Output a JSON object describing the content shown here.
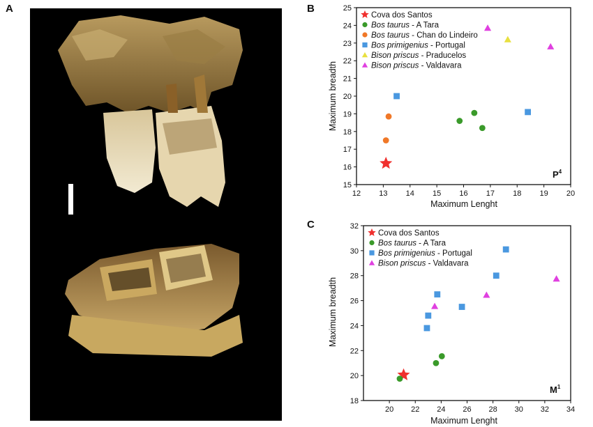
{
  "figure": {
    "panels": {
      "a": "A",
      "b": "B",
      "c": "C"
    },
    "photo_alt": "fossil-teeth-photograph"
  },
  "chart_data": [
    {
      "type": "scatter",
      "panel": "B",
      "tooth_label": "P",
      "tooth_superscript": "4",
      "xlabel": "Maximum Lenght",
      "ylabel": "Maximum breadth",
      "xlim": [
        12,
        20
      ],
      "ylim": [
        15,
        25
      ],
      "xticks": [
        12,
        13,
        14,
        15,
        16,
        17,
        18,
        19,
        20
      ],
      "yticks": [
        15,
        16,
        17,
        18,
        19,
        20,
        21,
        22,
        23,
        24,
        25
      ],
      "grid": false,
      "legend_position": "top-left",
      "series": [
        {
          "label_italic": "",
          "label_plain": "Cova dos Santos",
          "marker": "star",
          "color": "#f0302e",
          "points": [
            [
              13.1,
              16.2
            ]
          ]
        },
        {
          "label_italic": "Bos taurus",
          "label_plain": " - A Tara",
          "marker": "circle",
          "color": "#3a9a2a",
          "points": [
            [
              15.85,
              18.6
            ],
            [
              16.4,
              19.05
            ],
            [
              16.7,
              18.2
            ]
          ]
        },
        {
          "label_italic": "Bos taurus",
          "label_plain": " - Chan do Lindeiro",
          "marker": "circle",
          "color": "#f07828",
          "points": [
            [
              13.1,
              17.5
            ],
            [
              13.2,
              18.85
            ]
          ]
        },
        {
          "label_italic": "Bos primigenius",
          "label_plain": " - Portugal",
          "marker": "square",
          "color": "#4a98e0",
          "points": [
            [
              13.5,
              20.0
            ],
            [
              18.4,
              19.1
            ]
          ]
        },
        {
          "label_italic": "Bison priscus",
          "label_plain": " - Praducelos",
          "marker": "triangle",
          "color": "#e8e040",
          "points": [
            [
              17.65,
              23.2
            ]
          ]
        },
        {
          "label_italic": "Bison priscus",
          "label_plain": " - Valdavara",
          "marker": "triangle",
          "color": "#e040e0",
          "points": [
            [
              16.9,
              23.85
            ],
            [
              19.25,
              22.8
            ]
          ]
        }
      ]
    },
    {
      "type": "scatter",
      "panel": "C",
      "tooth_label": "M",
      "tooth_superscript": "1",
      "xlabel": "Maximum Lenght",
      "ylabel": "Maximum breadth",
      "xlim": [
        18,
        34
      ],
      "ylim": [
        18,
        32
      ],
      "xticks": [
        20,
        22,
        24,
        26,
        28,
        30,
        32,
        34
      ],
      "yticks": [
        18,
        20,
        22,
        24,
        26,
        28,
        30,
        32
      ],
      "grid": false,
      "legend_position": "top-left",
      "series": [
        {
          "label_italic": "",
          "label_plain": "Cova dos Santos",
          "marker": "star",
          "color": "#f0302e",
          "points": [
            [
              21.1,
              20.05
            ]
          ]
        },
        {
          "label_italic": "Bos taurus",
          "label_plain": " - A Tara",
          "marker": "circle",
          "color": "#3a9a2a",
          "points": [
            [
              20.8,
              19.75
            ],
            [
              23.6,
              21.0
            ],
            [
              24.05,
              21.55
            ]
          ]
        },
        {
          "label_italic": "Bos primigenius",
          "label_plain": " - Portugal",
          "marker": "square",
          "color": "#4a98e0",
          "points": [
            [
              22.9,
              23.8
            ],
            [
              23.0,
              24.8
            ],
            [
              23.7,
              26.5
            ],
            [
              25.6,
              25.5
            ],
            [
              28.25,
              28.0
            ],
            [
              29.0,
              30.1
            ]
          ]
        },
        {
          "label_italic": "Bison priscus",
          "label_plain": " - Valdavara",
          "marker": "triangle",
          "color": "#e040e0",
          "points": [
            [
              23.5,
              25.55
            ],
            [
              27.5,
              26.45
            ],
            [
              32.9,
              27.75
            ]
          ]
        }
      ]
    }
  ]
}
